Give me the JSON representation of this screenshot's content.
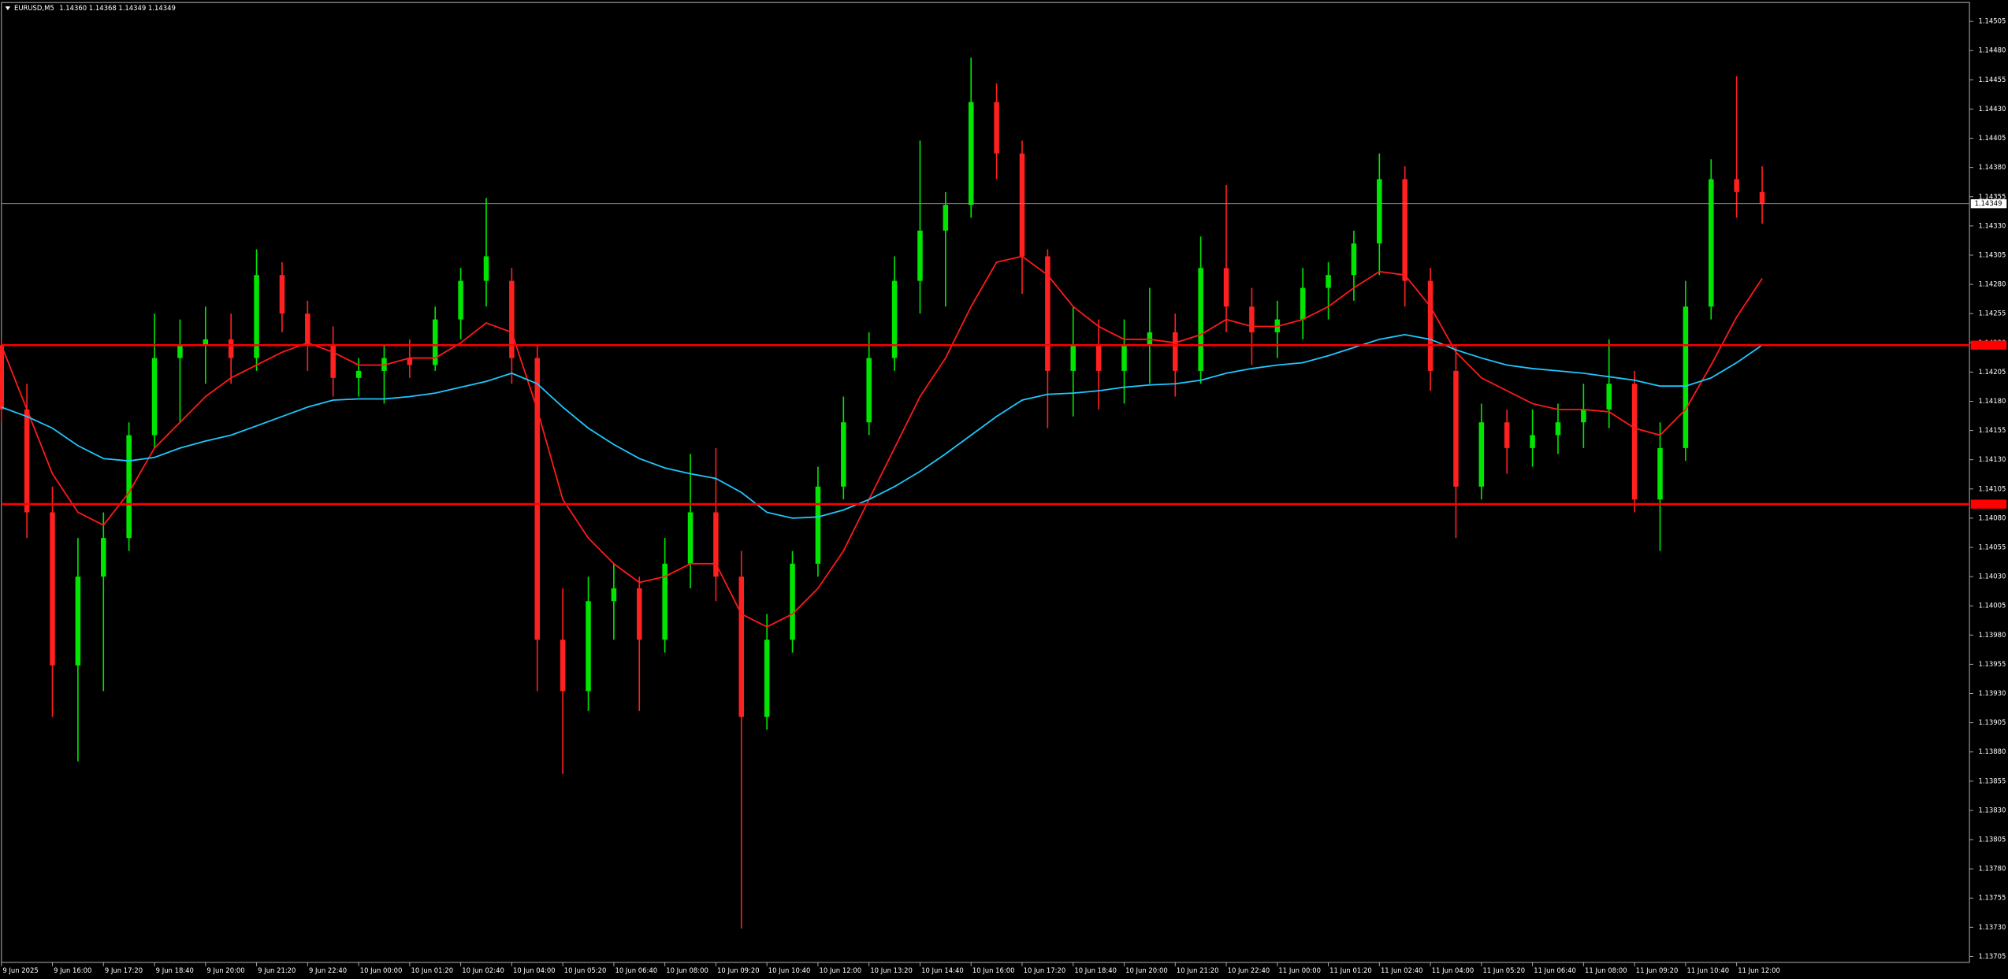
{
  "chart_data": {
    "type": "candlestick",
    "title": "EURUSD,M5",
    "quote": "1.14360 1.14368 1.14349 1.14349",
    "up_color": "#00e600",
    "down_color": "#ff2020",
    "xlim": [
      0,
      617
    ],
    "ylim": [
      1.137,
      1.1452
    ],
    "x": [
      0,
      8,
      16,
      24,
      32,
      40,
      48,
      56,
      64,
      72,
      80,
      88,
      96,
      104,
      112,
      120,
      128,
      136,
      144,
      152,
      160,
      168,
      176,
      184,
      192,
      200,
      208,
      216,
      224,
      232,
      240,
      248,
      256,
      264,
      272,
      280,
      288,
      296,
      304,
      312,
      320,
      328,
      336,
      344,
      352,
      360,
      368,
      376,
      384,
      392,
      400,
      408,
      416,
      424,
      432,
      440,
      448,
      456,
      464,
      472,
      480,
      488,
      496,
      504,
      512,
      520,
      528,
      536,
      544,
      552
    ],
    "open": [
      1.14228,
      1.14173,
      1.14085,
      1.13954,
      1.1403,
      1.14063,
      1.14151,
      1.14217,
      1.14228,
      1.14233,
      1.14217,
      1.14288,
      1.14255,
      1.14228,
      1.142,
      1.14206,
      1.14217,
      1.14211,
      1.1425,
      1.14283,
      1.14283,
      1.14217,
      1.13976,
      1.13932,
      1.14009,
      1.1402,
      1.13976,
      1.14041,
      1.14085,
      1.1403,
      1.1391,
      1.13976,
      1.14041,
      1.14107,
      1.14162,
      1.14217,
      1.14283,
      1.14326,
      1.14348,
      1.14436,
      1.14392,
      1.14304,
      1.14206,
      1.14228,
      1.14206,
      1.14228,
      1.14239,
      1.14206,
      1.14294,
      1.14261,
      1.14239,
      1.1425,
      1.14277,
      1.14288,
      1.14315,
      1.1437,
      1.14283,
      1.14206,
      1.14107,
      1.14162,
      1.1414,
      1.14151,
      1.14162,
      1.14173,
      1.14195,
      1.14096,
      1.1414,
      1.14261,
      1.1437,
      1.14359
    ],
    "high": [
      1.14233,
      1.14195,
      1.14107,
      1.14063,
      1.14085,
      1.14162,
      1.14255,
      1.1425,
      1.14261,
      1.14255,
      1.1431,
      1.14299,
      1.14266,
      1.14244,
      1.14217,
      1.14228,
      1.14233,
      1.14261,
      1.14294,
      1.14354,
      1.14294,
      1.14228,
      1.1402,
      1.1403,
      1.14041,
      1.1403,
      1.14063,
      1.14135,
      1.1414,
      1.14052,
      1.13998,
      1.14052,
      1.14124,
      1.14184,
      1.14239,
      1.14304,
      1.14403,
      1.14359,
      1.14474,
      1.14452,
      1.14403,
      1.1431,
      1.14261,
      1.1425,
      1.1425,
      1.14277,
      1.14255,
      1.14321,
      1.14365,
      1.14277,
      1.14266,
      1.14294,
      1.14299,
      1.14326,
      1.14392,
      1.14381,
      1.14294,
      1.14228,
      1.14178,
      1.14173,
      1.14173,
      1.14178,
      1.14195,
      1.14233,
      1.14206,
      1.14162,
      1.14283,
      1.14387,
      1.14458,
      1.14381
    ],
    "low": [
      1.14162,
      1.14063,
      1.1391,
      1.13872,
      1.13932,
      1.14052,
      1.1414,
      1.14162,
      1.14195,
      1.14195,
      1.14206,
      1.14239,
      1.14206,
      1.14184,
      1.14184,
      1.14178,
      1.142,
      1.14206,
      1.14233,
      1.14261,
      1.14195,
      1.13932,
      1.13861,
      1.13915,
      1.13976,
      1.13915,
      1.13965,
      1.1402,
      1.14009,
      1.13729,
      1.13899,
      1.13965,
      1.1403,
      1.14096,
      1.14151,
      1.14206,
      1.14255,
      1.14261,
      1.14337,
      1.1437,
      1.14272,
      1.14157,
      1.14167,
      1.14173,
      1.14178,
      1.14195,
      1.14184,
      1.14195,
      1.14239,
      1.14211,
      1.14217,
      1.14233,
      1.1425,
      1.14266,
      1.14288,
      1.14261,
      1.14189,
      1.14063,
      1.14096,
      1.14118,
      1.14124,
      1.14135,
      1.1414,
      1.14157,
      1.14085,
      1.14052,
      1.14129,
      1.1425,
      1.14337,
      1.14332
    ],
    "close": [
      1.14173,
      1.14085,
      1.13954,
      1.1403,
      1.14063,
      1.14151,
      1.14217,
      1.14228,
      1.14233,
      1.14217,
      1.14288,
      1.14255,
      1.14228,
      1.142,
      1.14206,
      1.14217,
      1.14211,
      1.1425,
      1.14283,
      1.14304,
      1.14217,
      1.13976,
      1.13932,
      1.14009,
      1.1402,
      1.13976,
      1.14041,
      1.14085,
      1.1403,
      1.1391,
      1.13976,
      1.14041,
      1.14107,
      1.14162,
      1.14217,
      1.14283,
      1.14326,
      1.14348,
      1.14436,
      1.14392,
      1.14304,
      1.14206,
      1.14228,
      1.14206,
      1.14228,
      1.14239,
      1.14206,
      1.14294,
      1.14261,
      1.14239,
      1.1425,
      1.14277,
      1.14288,
      1.14315,
      1.1437,
      1.14283,
      1.14206,
      1.14107,
      1.14162,
      1.1414,
      1.14151,
      1.14162,
      1.14173,
      1.14195,
      1.14096,
      1.1414,
      1.14261,
      1.1437,
      1.14359,
      1.14349
    ],
    "lines": [
      {
        "color": "#ff1a1a",
        "values": [
          1.14228,
          1.14173,
          1.14118,
          1.14085,
          1.14074,
          1.14102,
          1.1414,
          1.14162,
          1.14184,
          1.142,
          1.14211,
          1.14222,
          1.1423,
          1.14222,
          1.14211,
          1.14211,
          1.14217,
          1.14217,
          1.1423,
          1.14247,
          1.14239,
          1.14173,
          1.14096,
          1.14063,
          1.14041,
          1.14025,
          1.1403,
          1.14041,
          1.14041,
          1.13998,
          1.13987,
          1.13998,
          1.1402,
          1.14052,
          1.14096,
          1.1414,
          1.14184,
          1.14217,
          1.14261,
          1.14299,
          1.14304,
          1.14288,
          1.14261,
          1.14244,
          1.14233,
          1.14233,
          1.1423,
          1.14237,
          1.1425,
          1.14244,
          1.14244,
          1.1425,
          1.14261,
          1.14277,
          1.14291,
          1.14288,
          1.14261,
          1.14222,
          1.142,
          1.14189,
          1.14178,
          1.14173,
          1.14173,
          1.14171,
          1.14157,
          1.14151,
          1.14173,
          1.14211,
          1.14252,
          1.14285
        ]
      },
      {
        "color": "#1ec8ff",
        "values": [
          1.14175,
          1.14167,
          1.14157,
          1.14142,
          1.14131,
          1.14129,
          1.14132,
          1.1414,
          1.14146,
          1.14151,
          1.14159,
          1.14167,
          1.14175,
          1.14181,
          1.14182,
          1.14182,
          1.14184,
          1.14187,
          1.14192,
          1.14197,
          1.14204,
          1.14195,
          1.14175,
          1.14157,
          1.14143,
          1.14131,
          1.14123,
          1.14118,
          1.14114,
          1.14102,
          1.14085,
          1.1408,
          1.14081,
          1.14087,
          1.14096,
          1.14107,
          1.1412,
          1.14135,
          1.14151,
          1.14167,
          1.14181,
          1.14186,
          1.14187,
          1.14189,
          1.14192,
          1.14194,
          1.14195,
          1.14198,
          1.14204,
          1.14208,
          1.14211,
          1.14213,
          1.14219,
          1.14226,
          1.14233,
          1.14237,
          1.14233,
          1.14224,
          1.14217,
          1.14211,
          1.14208,
          1.14206,
          1.14204,
          1.14201,
          1.14198,
          1.14193,
          1.14193,
          1.142,
          1.14213,
          1.14228
        ]
      }
    ],
    "levels": [
      {
        "value": 1.14228,
        "color": "#ff0000"
      },
      {
        "value": 1.14092,
        "color": "#ff0000"
      }
    ],
    "last_price": 1.14349,
    "yticks": [
      1.13705,
      {
        "value": 1.1373,
        "label": "1.13730"
      },
      1.13755,
      {
        "value": 1.1378,
        "label": "1.13780"
      },
      1.13805,
      {
        "value": 1.1383,
        "label": "1.13830"
      },
      1.13855,
      {
        "value": 1.1388,
        "label": "1.13880"
      },
      1.13905,
      {
        "value": 1.1393,
        "label": "1.13930"
      },
      1.13955,
      {
        "value": 1.1398,
        "label": "1.13980"
      },
      1.14005,
      {
        "value": 1.1403,
        "label": "1.14030"
      },
      1.14055,
      {
        "value": 1.1408,
        "label": "1.14080"
      },
      1.14105,
      {
        "value": 1.1413,
        "label": "1.14130"
      },
      1.14155,
      {
        "value": 1.1418,
        "label": "1.14180"
      },
      1.14205,
      {
        "value": 1.1423,
        "label": "1.14230"
      },
      1.14255,
      {
        "value": 1.1428,
        "label": "1.14280"
      },
      1.14305,
      {
        "value": 1.1433,
        "label": "1.14330"
      },
      1.14355,
      {
        "value": 1.1438,
        "label": "1.14380"
      },
      1.14405,
      {
        "value": 1.1443,
        "label": "1.14430"
      },
      1.14455,
      {
        "value": 1.1448,
        "label": "1.14480"
      },
      1.14505
    ],
    "xticks": [
      {
        "value": 0,
        "label": "9 Jun 2025"
      },
      {
        "value": 16,
        "label": "9 Jun 16:00"
      },
      {
        "value": 32,
        "label": "9 Jun 17:20"
      },
      {
        "value": 48,
        "label": "9 Jun 18:40"
      },
      {
        "value": 64,
        "label": "9 Jun 20:00"
      },
      {
        "value": 80,
        "label": "9 Jun 21:20"
      },
      {
        "value": 96,
        "label": "9 Jun 22:40"
      },
      {
        "value": 112,
        "label": "10 Jun 00:00"
      },
      {
        "value": 128,
        "label": "10 Jun 01:20"
      },
      {
        "value": 144,
        "label": "10 Jun 02:40"
      },
      {
        "value": 160,
        "label": "10 Jun 04:00"
      },
      {
        "value": 176,
        "label": "10 Jun 05:20"
      },
      {
        "value": 192,
        "label": "10 Jun 06:40"
      },
      {
        "value": 208,
        "label": "10 Jun 08:00"
      },
      {
        "value": 224,
        "label": "10 Jun 09:20"
      },
      {
        "value": 240,
        "label": "10 Jun 10:40"
      },
      {
        "value": 256,
        "label": "10 Jun 12:00"
      },
      {
        "value": 272,
        "label": "10 Jun 13:20"
      },
      {
        "value": 288,
        "label": "10 Jun 14:40"
      },
      {
        "value": 304,
        "label": "10 Jun 16:00"
      },
      {
        "value": 320,
        "label": "10 Jun 17:20"
      },
      {
        "value": 336,
        "label": "10 Jun 18:40"
      },
      {
        "value": 352,
        "label": "10 Jun 20:00"
      },
      {
        "value": 368,
        "label": "10 Jun 21:20"
      },
      {
        "value": 384,
        "label": "10 Jun 22:40"
      },
      {
        "value": 400,
        "label": "11 Jun 00:00"
      },
      {
        "value": 416,
        "label": "11 Jun 01:20"
      },
      {
        "value": 432,
        "label": "11 Jun 02:40"
      },
      {
        "value": 448,
        "label": "11 Jun 04:00"
      },
      {
        "value": 464,
        "label": "11 Jun 05:20"
      },
      {
        "value": 480,
        "label": "11 Jun 06:40"
      },
      {
        "value": 496,
        "label": "11 Jun 08:00"
      },
      {
        "value": 512,
        "label": "11 Jun 09:20"
      },
      {
        "value": 528,
        "label": "11 Jun 10:40"
      },
      {
        "value": 544,
        "label": "11 Jun 12:00"
      }
    ]
  }
}
